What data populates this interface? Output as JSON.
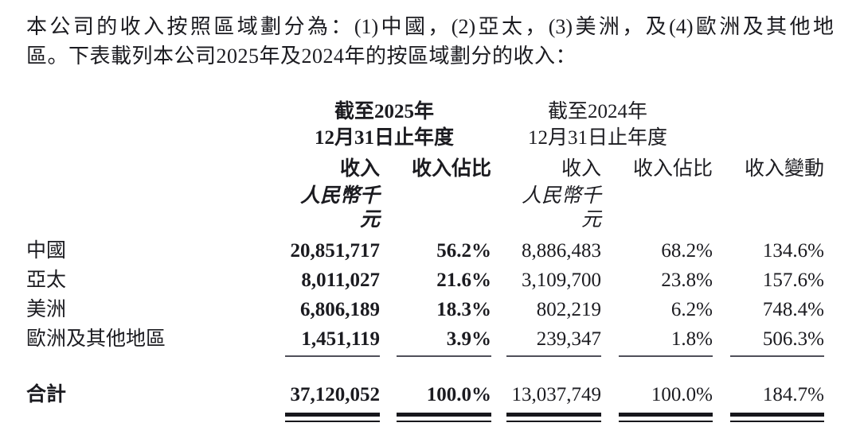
{
  "intro": {
    "line1": "本公司的收入按照區域劃分為：(1)中國，(2)亞太，(3)美洲，及(4)歐洲及其他地",
    "line2": "區。下表載列本公司2025年及2024年的按區域劃分的收入："
  },
  "table": {
    "period_2025": {
      "line1": "截至2025年",
      "line2": "12月31日止年度"
    },
    "period_2024": {
      "line1": "截至2024年",
      "line2": "12月31日止年度"
    },
    "columns": {
      "revenue_2025": "收入",
      "share_2025": "收入佔比",
      "revenue_2024": "收入",
      "share_2024": "收入佔比",
      "change": "收入變動"
    },
    "unit_2025": "人民幣千元",
    "unit_2024": "人民幣千元",
    "rows": [
      {
        "region": "中國",
        "rev_2025": "20,851,717",
        "share_2025": "56.2%",
        "rev_2024": "8,886,483",
        "share_2024": "68.2%",
        "change": "134.6%"
      },
      {
        "region": "亞太",
        "rev_2025": "8,011,027",
        "share_2025": "21.6%",
        "rev_2024": "3,109,700",
        "share_2024": "23.8%",
        "change": "157.6%"
      },
      {
        "region": "美洲",
        "rev_2025": "6,806,189",
        "share_2025": "18.3%",
        "rev_2024": "802,219",
        "share_2024": "6.2%",
        "change": "748.4%"
      },
      {
        "region": "歐洲及其他地區",
        "rev_2025": "1,451,119",
        "share_2025": "3.9%",
        "rev_2024": "239,347",
        "share_2024": "1.8%",
        "change": "506.3%"
      }
    ],
    "total": {
      "label": "合計",
      "rev_2025": "37,120,052",
      "share_2025": "100.0%",
      "rev_2024": "13,037,749",
      "share_2024": "100.0%",
      "change": "184.7%"
    }
  },
  "colors": {
    "text": "#1b1b20",
    "rule_single": "#50505a",
    "rule_double": "#17171c"
  }
}
